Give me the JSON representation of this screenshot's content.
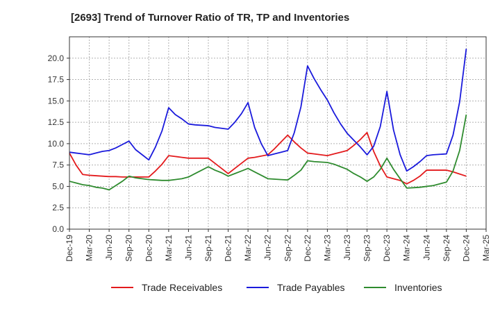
{
  "chart_data": {
    "type": "line",
    "title": "[2693]  Trend of Turnover Ratio of TR, TP and Inventories",
    "xlabel": "",
    "ylabel": "",
    "ylim": [
      0,
      22.5
    ],
    "yticks": [
      0.0,
      2.5,
      5.0,
      7.5,
      10.0,
      12.5,
      15.0,
      17.5,
      20.0
    ],
    "ytick_labels": [
      "0.0",
      "2.5",
      "5.0",
      "7.5",
      "10.0",
      "12.5",
      "15.0",
      "17.5",
      "20.0"
    ],
    "xtick_labels": [
      "Dec-19",
      "Mar-20",
      "Jun-20",
      "Sep-20",
      "Dec-20",
      "Mar-21",
      "Jun-21",
      "Sep-21",
      "Dec-21",
      "Mar-22",
      "Jun-22",
      "Sep-22",
      "Dec-22",
      "Mar-23",
      "Jun-23",
      "Sep-23",
      "Dec-23",
      "Mar-24",
      "Jun-24",
      "Sep-24",
      "Dec-24",
      "Mar-25"
    ],
    "grid": true,
    "legend_position": "bottom",
    "x": [
      "Dec-19",
      "Jan-20",
      "Feb-20",
      "Mar-20",
      "Apr-20",
      "May-20",
      "Jun-20",
      "Jul-20",
      "Aug-20",
      "Sep-20",
      "Oct-20",
      "Nov-20",
      "Dec-20",
      "Jan-21",
      "Feb-21",
      "Mar-21",
      "Apr-21",
      "May-21",
      "Jun-21",
      "Jul-21",
      "Aug-21",
      "Sep-21",
      "Oct-21",
      "Nov-21",
      "Dec-21",
      "Jan-22",
      "Feb-22",
      "Mar-22",
      "Apr-22",
      "May-22",
      "Jun-22",
      "Jul-22",
      "Aug-22",
      "Sep-22",
      "Oct-22",
      "Nov-22",
      "Dec-22",
      "Jan-23",
      "Feb-23",
      "Mar-23",
      "Apr-23",
      "May-23",
      "Jun-23",
      "Jul-23",
      "Aug-23",
      "Sep-23",
      "Oct-23",
      "Nov-23",
      "Dec-23",
      "Jan-24",
      "Feb-24",
      "Mar-24",
      "Apr-24",
      "May-24",
      "Jun-24",
      "Jul-24",
      "Aug-24",
      "Sep-24",
      "Oct-24",
      "Nov-24",
      "Dec-24"
    ],
    "series": [
      {
        "name": "Trade Receivables",
        "color": "#e31a1c",
        "values": [
          8.9,
          7.5,
          6.4,
          6.3,
          6.25,
          6.2,
          6.15,
          6.15,
          6.1,
          6.1,
          6.1,
          6.1,
          6.1,
          6.8,
          7.6,
          8.6,
          8.5,
          8.4,
          8.3,
          8.3,
          8.3,
          8.3,
          7.7,
          7.1,
          6.5,
          7.1,
          7.7,
          8.3,
          8.4,
          8.55,
          8.7,
          9.4,
          10.2,
          11.0,
          10.2,
          9.5,
          8.9,
          8.8,
          8.7,
          8.6,
          8.8,
          9.0,
          9.2,
          9.8,
          10.5,
          11.3,
          9.1,
          7.4,
          6.1,
          5.9,
          5.7,
          5.3,
          5.7,
          6.2,
          6.9,
          6.9,
          6.9,
          6.9,
          6.7,
          6.45,
          6.2
        ]
      },
      {
        "name": "Trade Payables",
        "color": "#1a1adc",
        "values": [
          9.0,
          8.9,
          8.8,
          8.7,
          8.9,
          9.1,
          9.2,
          9.5,
          9.9,
          10.3,
          9.3,
          8.7,
          8.1,
          9.6,
          11.5,
          14.2,
          13.4,
          12.9,
          12.3,
          12.2,
          12.15,
          12.1,
          11.9,
          11.8,
          11.7,
          12.5,
          13.5,
          14.8,
          11.9,
          10.0,
          8.6,
          8.8,
          9.0,
          9.2,
          11.3,
          14.3,
          19.1,
          17.6,
          16.3,
          15.1,
          13.6,
          12.3,
          11.2,
          10.4,
          9.6,
          8.7,
          9.7,
          12.0,
          16.1,
          11.6,
          8.7,
          6.8,
          7.3,
          7.9,
          8.6,
          8.7,
          8.75,
          8.8,
          11.0,
          14.9,
          21.1
        ]
      },
      {
        "name": "Inventories",
        "color": "#2e8b2e",
        "values": [
          5.6,
          5.4,
          5.2,
          5.1,
          4.9,
          4.8,
          4.6,
          5.1,
          5.6,
          6.2,
          6.0,
          5.9,
          5.8,
          5.75,
          5.7,
          5.7,
          5.8,
          5.9,
          6.1,
          6.5,
          6.9,
          7.3,
          6.9,
          6.6,
          6.2,
          6.5,
          6.8,
          7.1,
          6.7,
          6.3,
          5.9,
          5.85,
          5.8,
          5.75,
          6.3,
          6.9,
          8.0,
          7.9,
          7.85,
          7.8,
          7.6,
          7.3,
          7.0,
          6.5,
          6.1,
          5.6,
          6.1,
          7.0,
          8.3,
          7.0,
          5.9,
          4.8,
          4.85,
          4.9,
          5.0,
          5.1,
          5.3,
          5.5,
          6.8,
          9.2,
          13.4
        ]
      }
    ]
  }
}
